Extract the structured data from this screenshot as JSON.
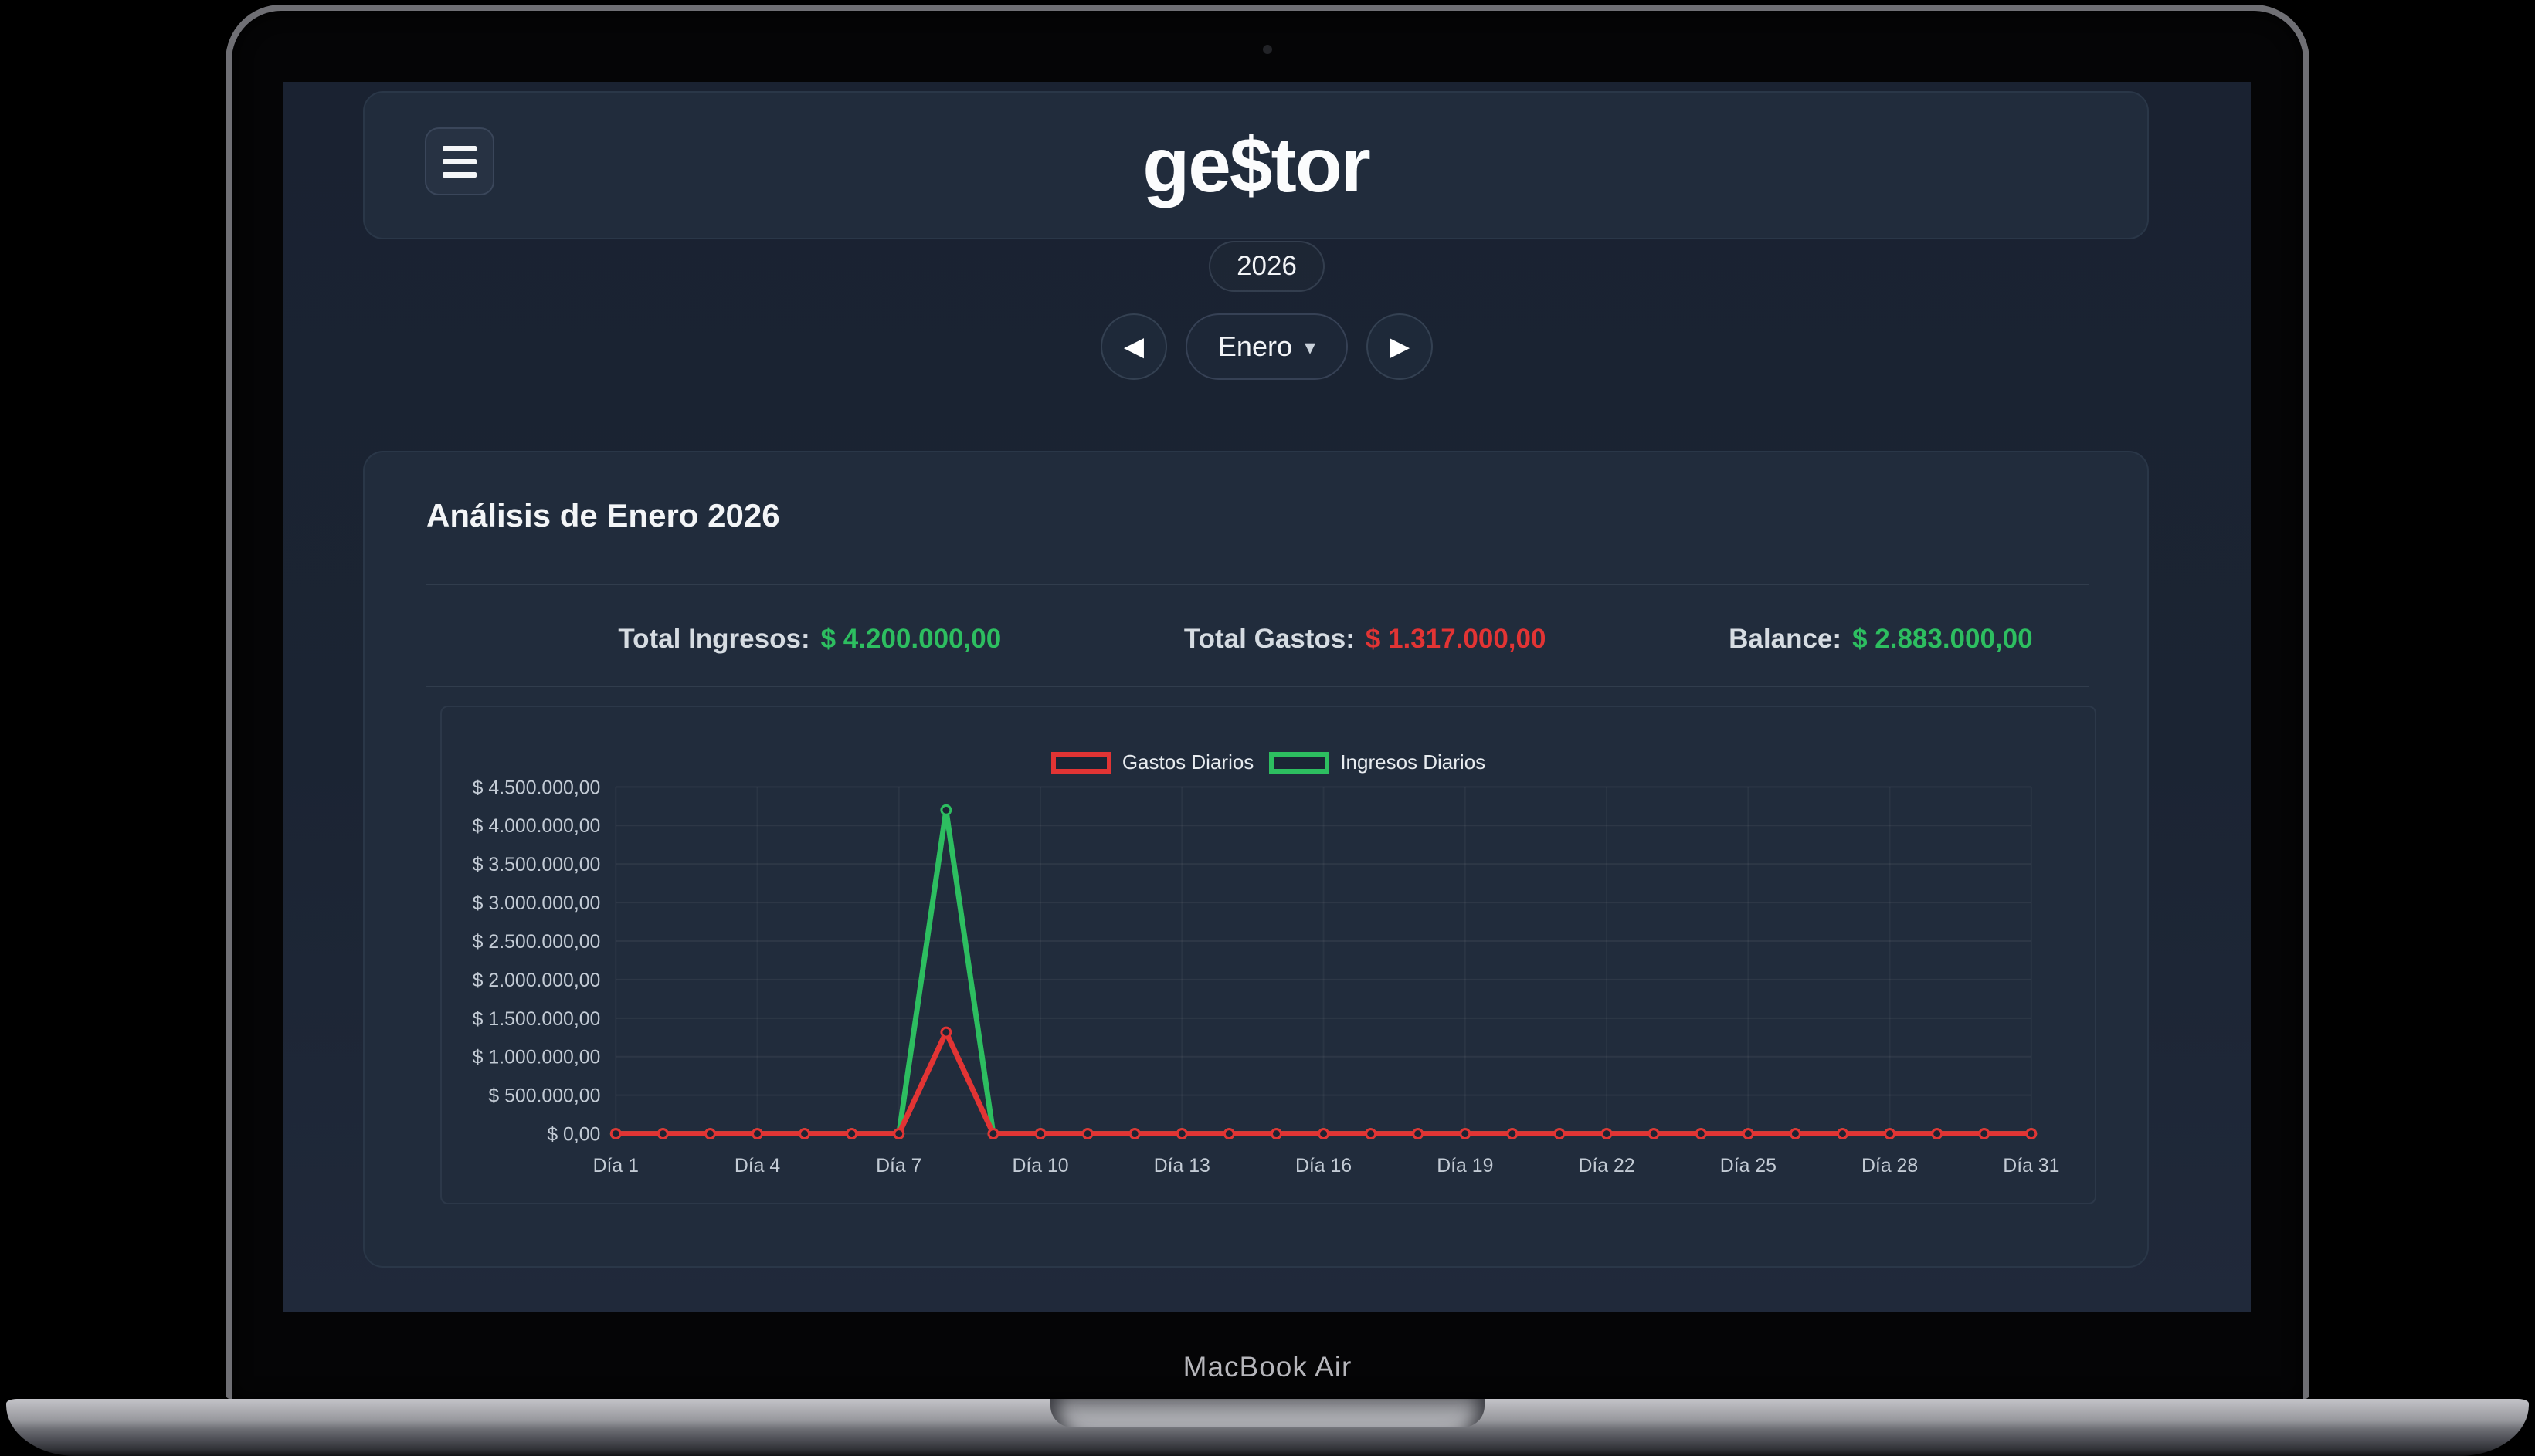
{
  "device": {
    "label": "MacBook Air"
  },
  "colors": {
    "green": "#2dbe60",
    "red": "#e23434",
    "app_bg": "#1b2433",
    "card_bg": "#212c3c"
  },
  "header": {
    "logo": "ge$tor",
    "menu_icon": "hamburger-menu"
  },
  "period": {
    "year": "2026",
    "prev_icon": "◀",
    "month_label": "Enero",
    "caret_icon": "▾",
    "next_icon": "▶"
  },
  "analysis": {
    "title": "Análisis de Enero 2026",
    "totals": [
      {
        "label": "Total Ingresos:",
        "value": "$ 4.200.000,00",
        "color": "#2dbe60"
      },
      {
        "label": "Total Gastos:",
        "value": "$ 1.317.000,00",
        "color": "#e23434"
      },
      {
        "label": "Balance:",
        "value": "$ 2.883.000,00",
        "color": "#2dbe60"
      }
    ]
  },
  "chart_data": {
    "type": "line",
    "title": "Análisis de Enero 2026",
    "categories": [
      "Día 1",
      "Día 2",
      "Día 3",
      "Día 4",
      "Día 5",
      "Día 6",
      "Día 7",
      "Día 8",
      "Día 9",
      "Día 10",
      "Día 11",
      "Día 12",
      "Día 13",
      "Día 14",
      "Día 15",
      "Día 16",
      "Día 17",
      "Día 18",
      "Día 19",
      "Día 20",
      "Día 21",
      "Día 22",
      "Día 23",
      "Día 24",
      "Día 25",
      "Día 26",
      "Día 27",
      "Día 28",
      "Día 29",
      "Día 30",
      "Día 31"
    ],
    "x_tick_step": 3,
    "series": [
      {
        "name": "Gastos Diarios",
        "color": "#e23434",
        "values": [
          0,
          0,
          0,
          0,
          0,
          0,
          0,
          1317000,
          0,
          0,
          0,
          0,
          0,
          0,
          0,
          0,
          0,
          0,
          0,
          0,
          0,
          0,
          0,
          0,
          0,
          0,
          0,
          0,
          0,
          0,
          0
        ]
      },
      {
        "name": "Ingresos Diarios",
        "color": "#2dbe60",
        "values": [
          0,
          0,
          0,
          0,
          0,
          0,
          0,
          4200000,
          0,
          0,
          0,
          0,
          0,
          0,
          0,
          0,
          0,
          0,
          0,
          0,
          0,
          0,
          0,
          0,
          0,
          0,
          0,
          0,
          0,
          0,
          0
        ]
      }
    ],
    "ylim": [
      0,
      4500000
    ],
    "ytick_step": 500000,
    "ytick_labels": [
      "$ 0,00",
      "$ 500.000,00",
      "$ 1.000.000,00",
      "$ 1.500.000,00",
      "$ 2.000.000,00",
      "$ 2.500.000,00",
      "$ 3.000.000,00",
      "$ 3.500.000,00",
      "$ 4.000.000,00",
      "$ 4.500.000,00"
    ],
    "legend_position": "top",
    "grid": true
  }
}
